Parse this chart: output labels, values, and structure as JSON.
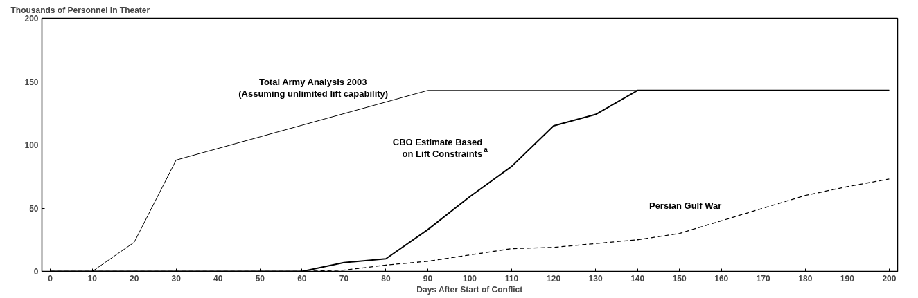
{
  "chart_data": {
    "type": "line",
    "ylabel": "Thousands of Personnel in Theater",
    "xlabel": "Days After Start of Conflict",
    "xlim": [
      -2,
      202
    ],
    "ylim": [
      0,
      200
    ],
    "xticks": [
      0,
      10,
      20,
      30,
      40,
      50,
      60,
      70,
      80,
      90,
      100,
      110,
      120,
      130,
      140,
      150,
      160,
      170,
      180,
      190,
      200
    ],
    "yticks": [
      0,
      50,
      100,
      150,
      200
    ],
    "series": [
      {
        "name": "Total Army Analysis 2003\n(Assuming unlimited lift capability)",
        "color": "#000000",
        "line_style": "solid",
        "x": [
          0,
          10,
          20,
          30,
          90,
          200
        ],
        "values": [
          0,
          0,
          23,
          88,
          143,
          143
        ]
      },
      {
        "name": "CBO Estimate Based\non Lift Constraints$^{a}$",
        "color": "#000000",
        "line_style": "solid",
        "x": [
          0,
          60,
          70,
          80,
          90,
          100,
          110,
          120,
          130,
          140,
          200
        ],
        "values": [
          0,
          0,
          7,
          10,
          33,
          59,
          83,
          115,
          124,
          143,
          143
        ]
      },
      {
        "name": "Persian Gulf War",
        "color": "#000000",
        "line_style": "dashed",
        "x": [
          0,
          60,
          70,
          80,
          90,
          100,
          110,
          120,
          130,
          140,
          150,
          160,
          170,
          180,
          190,
          200
        ],
        "values": [
          0,
          0,
          1,
          5,
          8,
          13,
          18,
          19,
          22,
          25,
          30,
          40,
          50,
          60,
          67,
          73
        ]
      }
    ]
  }
}
